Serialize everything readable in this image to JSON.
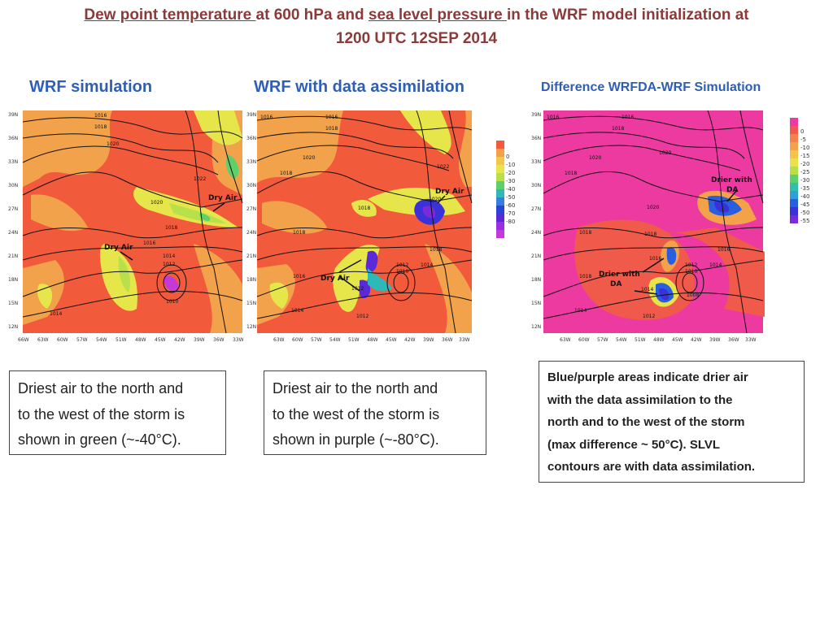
{
  "header": {
    "title_part1": "Dew point temperature ",
    "title_part2": "at 600 hPa and ",
    "title_part3": "sea level pressure ",
    "title_part4": "in the WRF model initialization at",
    "title_line2": "1200 UTC 12SEP 2014"
  },
  "panels": {
    "wrf": {
      "title": "WRF simulation",
      "annotations": [
        "Dry Air",
        "Dry Air"
      ],
      "isobars": [
        "1016",
        "1018",
        "1020",
        "1022",
        "1020",
        "1018",
        "1016",
        "1014",
        "1012",
        "1010",
        "1014"
      ]
    },
    "wrfda": {
      "title": "WRF with data assimilation",
      "annotations": [
        "Dry Air",
        "Dry Air"
      ],
      "isobars": [
        "1016",
        "1018",
        "1020",
        "1022",
        "1018",
        "1020",
        "1018",
        "1016",
        "1014",
        "1012",
        "1010",
        "1014",
        "1012",
        "1014"
      ]
    },
    "diff": {
      "title": "Difference WRFDA-WRF Simulation",
      "annotations": [
        "Drier with",
        "DA",
        "Drier with",
        "DA"
      ],
      "isobars": [
        "1016",
        "1018",
        "1020",
        "1020",
        "1018",
        "1016",
        "1018",
        "1014",
        "1012",
        "1010",
        "1014",
        "1014",
        "1008",
        "1012"
      ]
    }
  },
  "axes": {
    "lat_ticks": [
      "39N",
      "36N",
      "33N",
      "30N",
      "27N",
      "24N",
      "21N",
      "18N",
      "15N",
      "12N"
    ],
    "lon_ticks_wrf": [
      "66W",
      "63W",
      "60W",
      "57W",
      "54W",
      "51W",
      "48W",
      "45W",
      "42W",
      "39W",
      "36W",
      "33W"
    ],
    "lon_ticks_da": [
      "63W",
      "60W",
      "57W",
      "54W",
      "51W",
      "48W",
      "45W",
      "42W",
      "39W",
      "36W",
      "33W"
    ]
  },
  "colorbars": {
    "dewpoint": {
      "labels": [
        "0",
        "-10",
        "-20",
        "-30",
        "-40",
        "-50",
        "-60",
        "-70",
        "-80"
      ],
      "colors": [
        "#f25a3c",
        "#f2a24a",
        "#f2c84c",
        "#e6e64a",
        "#b8e04a",
        "#5ed06a",
        "#2fb8b8",
        "#3a7de0",
        "#2a44d8",
        "#5a2ad8",
        "#9a2ee0",
        "#c43ad8"
      ]
    },
    "difference": {
      "labels": [
        "0",
        "-5",
        "-10",
        "-15",
        "-20",
        "-25",
        "-30",
        "-35",
        "-40",
        "-45",
        "-50",
        "-55"
      ],
      "colors": [
        "#ec3aa0",
        "#f05a4a",
        "#f4804a",
        "#f4a24a",
        "#f2c44c",
        "#e6e44a",
        "#b6e04a",
        "#5ed06a",
        "#2fc0a8",
        "#2f9ed8",
        "#2a5ee0",
        "#3a32d8",
        "#7a2ad8"
      ]
    }
  },
  "captions": {
    "wrf": [
      "Driest air to the north and",
      "to the west of the storm is",
      "shown in green (~-40°C)."
    ],
    "wrfda": [
      "Driest air to the north and",
      "to the west of the storm is",
      "shown in purple (~-80°C)."
    ],
    "diff": [
      "Blue/purple areas indicate drier air",
      "with the data assimilation to the",
      "north and to the west of the storm",
      "(max difference ~ 50°C). SLVL",
      "contours  are with data assimilation."
    ]
  }
}
